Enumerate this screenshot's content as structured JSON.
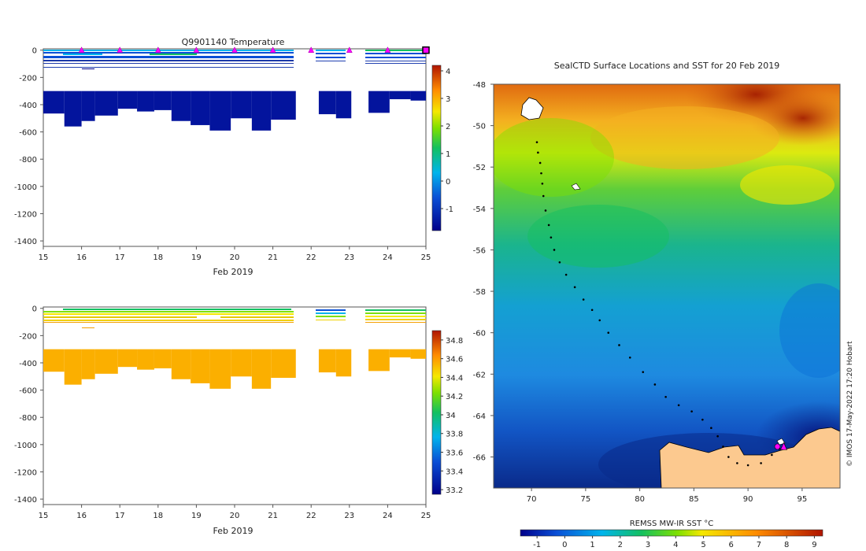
{
  "chart_data": [
    {
      "type": "heatmap",
      "title": "Q9901140  Temperature",
      "xlabel": "Feb 2019",
      "xticks": [
        15,
        16,
        17,
        18,
        19,
        20,
        21,
        22,
        23,
        24,
        25
      ],
      "yticks": [
        0,
        -200,
        -400,
        -600,
        -800,
        -1000,
        -1200,
        -1400
      ],
      "xlim": [
        15,
        25
      ],
      "ylim": [
        -1440,
        10
      ],
      "colorbar": {
        "ticks": [
          4,
          3,
          2,
          1,
          0,
          -1
        ],
        "range": [
          -1.8,
          4.2
        ]
      },
      "profile_markers_day": [
        16,
        17,
        18,
        19,
        20,
        21,
        22,
        23,
        24,
        25
      ],
      "deep_layer": {
        "value": -1.5,
        "top_depth": -300,
        "segments": [
          {
            "x0": 15.0,
            "x1": 15.55,
            "bottom": -465
          },
          {
            "x0": 15.55,
            "x1": 16.0,
            "bottom": -560
          },
          {
            "x0": 16.0,
            "x1": 16.35,
            "bottom": -520
          },
          {
            "x0": 16.35,
            "x1": 16.95,
            "bottom": -480
          },
          {
            "x0": 16.95,
            "x1": 17.45,
            "bottom": -430
          },
          {
            "x0": 17.45,
            "x1": 17.9,
            "bottom": -450
          },
          {
            "x0": 17.9,
            "x1": 18.35,
            "bottom": -440
          },
          {
            "x0": 18.35,
            "x1": 18.85,
            "bottom": -520
          },
          {
            "x0": 18.85,
            "x1": 19.35,
            "bottom": -550
          },
          {
            "x0": 19.35,
            "x1": 19.9,
            "bottom": -590
          },
          {
            "x0": 19.9,
            "x1": 20.45,
            "bottom": -500
          },
          {
            "x0": 20.45,
            "x1": 20.95,
            "bottom": -590
          },
          {
            "x0": 20.95,
            "x1": 21.6,
            "bottom": -510
          },
          {
            "x0": 22.2,
            "x1": 22.65,
            "bottom": -470
          },
          {
            "x0": 22.65,
            "x1": 23.05,
            "bottom": -500
          },
          {
            "x0": 23.5,
            "x1": 24.05,
            "bottom": -460
          },
          {
            "x0": 24.05,
            "x1": 24.6,
            "bottom": -360
          },
          {
            "x0": 24.6,
            "x1": 25.0,
            "bottom": -370
          }
        ]
      }
    },
    {
      "type": "heatmap",
      "title": "",
      "xlabel": "Feb 2019",
      "xticks": [
        15,
        16,
        17,
        18,
        19,
        20,
        21,
        22,
        23,
        24,
        25
      ],
      "yticks": [
        0,
        -200,
        -400,
        -600,
        -800,
        -1000,
        -1200,
        -1400
      ],
      "xlim": [
        15,
        25
      ],
      "ylim": [
        -1440,
        10
      ],
      "colorbar": {
        "ticks": [
          34.8,
          34.6,
          34.4,
          34.2,
          34,
          33.8,
          33.6,
          33.4,
          33.2
        ],
        "range": [
          33.15,
          34.9
        ]
      },
      "deep_layer": {
        "value": 34.55,
        "top_depth": -300,
        "segments": [
          {
            "x0": 15.0,
            "x1": 15.55,
            "bottom": -465
          },
          {
            "x0": 15.55,
            "x1": 16.0,
            "bottom": -560
          },
          {
            "x0": 16.0,
            "x1": 16.35,
            "bottom": -520
          },
          {
            "x0": 16.35,
            "x1": 16.95,
            "bottom": -480
          },
          {
            "x0": 16.95,
            "x1": 17.45,
            "bottom": -430
          },
          {
            "x0": 17.45,
            "x1": 17.9,
            "bottom": -450
          },
          {
            "x0": 17.9,
            "x1": 18.35,
            "bottom": -440
          },
          {
            "x0": 18.35,
            "x1": 18.85,
            "bottom": -520
          },
          {
            "x0": 18.85,
            "x1": 19.35,
            "bottom": -550
          },
          {
            "x0": 19.35,
            "x1": 19.9,
            "bottom": -590
          },
          {
            "x0": 19.9,
            "x1": 20.45,
            "bottom": -500
          },
          {
            "x0": 20.45,
            "x1": 20.95,
            "bottom": -590
          },
          {
            "x0": 20.95,
            "x1": 21.6,
            "bottom": -510
          },
          {
            "x0": 22.2,
            "x1": 22.65,
            "bottom": -470
          },
          {
            "x0": 22.65,
            "x1": 23.05,
            "bottom": -500
          },
          {
            "x0": 23.5,
            "x1": 24.05,
            "bottom": -460
          },
          {
            "x0": 24.05,
            "x1": 24.6,
            "bottom": -360
          },
          {
            "x0": 24.6,
            "x1": 25.0,
            "bottom": -370
          }
        ]
      }
    },
    {
      "type": "heatmap",
      "title": "SealCTD Surface Locations and SST for 20 Feb 2019",
      "xlabel": "",
      "ylabel": "",
      "xticks": [
        70,
        75,
        80,
        85,
        90,
        95
      ],
      "yticks": [
        -48,
        -50,
        -52,
        -54,
        -56,
        -58,
        -60,
        -62,
        -64,
        -66
      ],
      "xlim": [
        66.5,
        98.5
      ],
      "ylim": [
        -67.5,
        -48
      ],
      "colorbar_title": "REMSS MW-IR SST °C",
      "colorbar_ticks": [
        -1,
        0,
        1,
        2,
        3,
        4,
        5,
        6,
        7,
        8,
        9
      ],
      "credit": "© IMOS 17-May-2022 17:20 Hobart",
      "track": [
        [
          70.5,
          -50.8
        ],
        [
          70.6,
          -51.3
        ],
        [
          70.8,
          -51.8
        ],
        [
          70.9,
          -52.3
        ],
        [
          71.0,
          -52.8
        ],
        [
          71.1,
          -53.4
        ],
        [
          71.3,
          -54.1
        ],
        [
          71.6,
          -54.8
        ],
        [
          71.8,
          -55.4
        ],
        [
          72.1,
          -56.0
        ],
        [
          72.6,
          -56.6
        ],
        [
          73.2,
          -57.2
        ],
        [
          74.0,
          -57.8
        ],
        [
          74.8,
          -58.4
        ],
        [
          75.6,
          -58.9
        ],
        [
          76.3,
          -59.4
        ],
        [
          77.1,
          -60.0
        ],
        [
          78.1,
          -60.6
        ],
        [
          79.1,
          -61.2
        ],
        [
          80.3,
          -61.9
        ],
        [
          81.4,
          -62.5
        ],
        [
          82.4,
          -63.1
        ],
        [
          83.6,
          -63.5
        ],
        [
          84.8,
          -63.8
        ],
        [
          85.8,
          -64.2
        ],
        [
          86.6,
          -64.6
        ],
        [
          87.2,
          -65.0
        ],
        [
          87.7,
          -65.5
        ],
        [
          88.2,
          -66.0
        ],
        [
          89.0,
          -66.3
        ],
        [
          90.0,
          -66.4
        ],
        [
          91.2,
          -66.3
        ],
        [
          92.2,
          -65.9
        ],
        [
          92.9,
          -65.6
        ]
      ],
      "latest_position": [
        93.3,
        -65.5
      ]
    }
  ]
}
